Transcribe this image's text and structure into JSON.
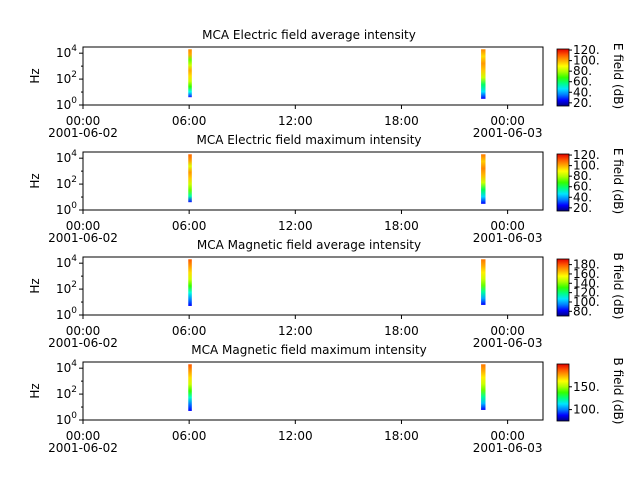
{
  "chart_data": [
    {
      "type": "heatmap",
      "title": "MCA  Electric field average intensity",
      "ylabel": "Hz",
      "yscale": "log",
      "ylim": [
        1,
        30000
      ],
      "yticks": [
        {
          "value": 1,
          "base": "10",
          "exp": "0"
        },
        {
          "value": 100,
          "base": "10",
          "exp": "2"
        },
        {
          "value": 10000,
          "base": "10",
          "exp": "4"
        }
      ],
      "xlim": [
        0,
        26
      ],
      "xticks": [
        {
          "value": 0,
          "time": "00:00",
          "date": "2001-06-02"
        },
        {
          "value": 6,
          "time": "06:00",
          "date": ""
        },
        {
          "value": 12,
          "time": "12:00",
          "date": ""
        },
        {
          "value": 18,
          "time": "18:00",
          "date": ""
        },
        {
          "value": 24,
          "time": "00:00",
          "date": "2001-06-03"
        }
      ],
      "colorbar": {
        "label": "E field (dB)",
        "range": [
          14,
          122
        ],
        "ticks": [
          20,
          40,
          60,
          80,
          100,
          120
        ]
      },
      "segments": [
        {
          "x": [
            5.95,
            6.15
          ],
          "y": [
            4,
            20000
          ],
          "gradient": [
            "#1515ff",
            "#00ffee",
            "#33ff00",
            "#ccff00",
            "#ffdd00",
            "#ffaa00",
            "#ccff00",
            "#66ff00",
            "#ffaa00",
            "#ff8800"
          ]
        },
        {
          "x": [
            22.5,
            22.75
          ],
          "y": [
            3,
            20000
          ],
          "gradient": [
            "#0000ff",
            "#00e0ff",
            "#00ff66",
            "#ccff00",
            "#ffcc00",
            "#ff9900",
            "#ffdd00",
            "#ff8800"
          ]
        }
      ]
    },
    {
      "type": "heatmap",
      "title": "MCA  Electric field maximum intensity",
      "ylabel": "Hz",
      "yscale": "log",
      "ylim": [
        1,
        30000
      ],
      "yticks": [
        {
          "value": 1,
          "base": "10",
          "exp": "0"
        },
        {
          "value": 100,
          "base": "10",
          "exp": "2"
        },
        {
          "value": 10000,
          "base": "10",
          "exp": "4"
        }
      ],
      "xlim": [
        0,
        26
      ],
      "xticks": [
        {
          "value": 0,
          "time": "00:00",
          "date": "2001-06-02"
        },
        {
          "value": 6,
          "time": "06:00",
          "date": ""
        },
        {
          "value": 12,
          "time": "12:00",
          "date": ""
        },
        {
          "value": 18,
          "time": "18:00",
          "date": ""
        },
        {
          "value": 24,
          "time": "00:00",
          "date": "2001-06-03"
        }
      ],
      "colorbar": {
        "label": "E field (dB)",
        "range": [
          14,
          122
        ],
        "ticks": [
          20,
          40,
          60,
          80,
          100,
          120
        ]
      },
      "segments": [
        {
          "x": [
            5.95,
            6.15
          ],
          "y": [
            4,
            20000
          ],
          "gradient": [
            "#1010ff",
            "#00ffaa",
            "#66ff00",
            "#ccff00",
            "#ffcc00",
            "#ff9900",
            "#ddff00",
            "#ff9900",
            "#ff6600"
          ]
        },
        {
          "x": [
            22.5,
            22.75
          ],
          "y": [
            3,
            20000
          ],
          "gradient": [
            "#0000ff",
            "#00d8ff",
            "#00ff55",
            "#ccff00",
            "#ffbb00",
            "#ff8800",
            "#ffcc00",
            "#ff7700"
          ]
        }
      ]
    },
    {
      "type": "heatmap",
      "title": "MCA  Magnetic field average intensity",
      "ylabel": "Hz",
      "yscale": "log",
      "ylim": [
        1,
        30000
      ],
      "yticks": [
        {
          "value": 1,
          "base": "10",
          "exp": "0"
        },
        {
          "value": 100,
          "base": "10",
          "exp": "2"
        },
        {
          "value": 10000,
          "base": "10",
          "exp": "4"
        }
      ],
      "xlim": [
        0,
        26
      ],
      "xticks": [
        {
          "value": 0,
          "time": "00:00",
          "date": "2001-06-02"
        },
        {
          "value": 6,
          "time": "06:00",
          "date": ""
        },
        {
          "value": 12,
          "time": "12:00",
          "date": ""
        },
        {
          "value": 18,
          "time": "18:00",
          "date": ""
        },
        {
          "value": 24,
          "time": "00:00",
          "date": "2001-06-03"
        }
      ],
      "colorbar": {
        "label": "B field (dB)",
        "range": [
          70,
          192
        ],
        "ticks": [
          80,
          100,
          120,
          140,
          160,
          180
        ]
      },
      "segments": [
        {
          "x": [
            5.95,
            6.15
          ],
          "y": [
            5,
            20000
          ],
          "gradient": [
            "#0000ff",
            "#0088ff",
            "#00ffdd",
            "#33ff00",
            "#ccff00",
            "#ffdd00",
            "#ff9900",
            "#ff5500"
          ]
        },
        {
          "x": [
            22.5,
            22.75
          ],
          "y": [
            6,
            20000
          ],
          "gradient": [
            "#0000ff",
            "#00aaff",
            "#00ff99",
            "#66ff00",
            "#ccff00",
            "#ffee00",
            "#ffaa00",
            "#ff7700"
          ]
        }
      ]
    },
    {
      "type": "heatmap",
      "title": "MCA  Magnetic field maximum intensity",
      "ylabel": "Hz",
      "yscale": "log",
      "ylim": [
        1,
        30000
      ],
      "yticks": [
        {
          "value": 1,
          "base": "10",
          "exp": "0"
        },
        {
          "value": 100,
          "base": "10",
          "exp": "2"
        },
        {
          "value": 10000,
          "base": "10",
          "exp": "4"
        }
      ],
      "xlim": [
        0,
        26
      ],
      "xticks": [
        {
          "value": 0,
          "time": "00:00",
          "date": "2001-06-02"
        },
        {
          "value": 6,
          "time": "06:00",
          "date": ""
        },
        {
          "value": 12,
          "time": "12:00",
          "date": ""
        },
        {
          "value": 18,
          "time": "18:00",
          "date": ""
        },
        {
          "value": 24,
          "time": "00:00",
          "date": "2001-06-03"
        }
      ],
      "colorbar": {
        "label": "B field (dB)",
        "range": [
          75,
          200
        ],
        "ticks": [
          100,
          150
        ]
      },
      "segments": [
        {
          "x": [
            5.95,
            6.15
          ],
          "y": [
            5,
            20000
          ],
          "gradient": [
            "#0000ff",
            "#0077ff",
            "#00ffcc",
            "#33ff00",
            "#ccff00",
            "#ffdd00",
            "#ff9900",
            "#ff5500"
          ]
        },
        {
          "x": [
            22.5,
            22.75
          ],
          "y": [
            6,
            20000
          ],
          "gradient": [
            "#0000ff",
            "#00bbff",
            "#00ff99",
            "#66ff00",
            "#ccff00",
            "#ffee00",
            "#ffaa00",
            "#ff7700"
          ]
        }
      ]
    }
  ],
  "colormap": [
    "#00007f",
    "#0000ff",
    "#0080ff",
    "#00e5ff",
    "#00ff80",
    "#33ff00",
    "#aaff00",
    "#ffff00",
    "#ffaa00",
    "#ff5500",
    "#e00000"
  ]
}
